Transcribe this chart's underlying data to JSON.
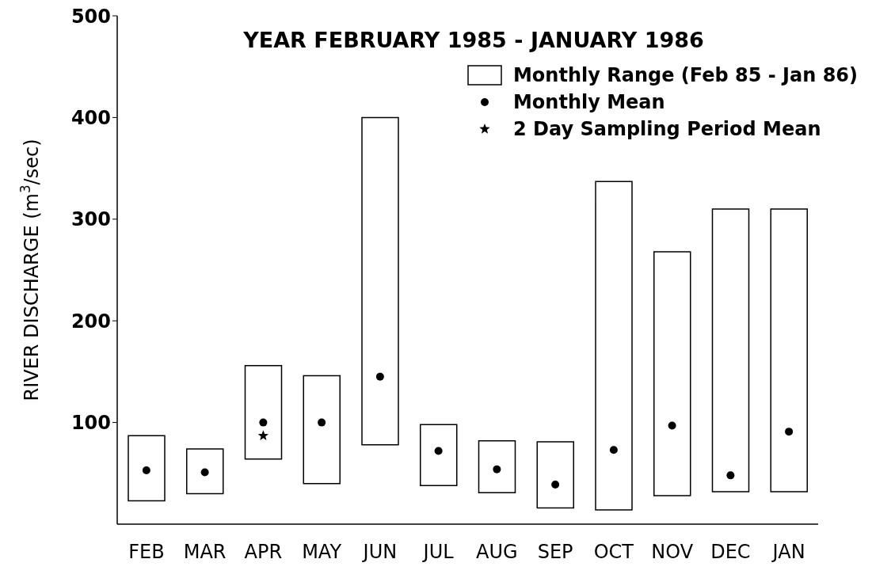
{
  "chart_data": {
    "type": "bar",
    "title": "YEAR FEBRUARY 1985 - JANUARY 1986",
    "ylabel": "RIVER DISCHARGE (m$^{3}$/sec)",
    "categories": [
      "FEB",
      "MAR",
      "APR",
      "MAY",
      "JUN",
      "JUL",
      "AUG",
      "SEP",
      "OCT",
      "NOV",
      "DEC",
      "JAN"
    ],
    "series": [
      {
        "name": "Monthly Range (Feb 85 - Jan 86)",
        "color": "#ffffff",
        "base": [
          23,
          30,
          64,
          40,
          78,
          38,
          31,
          16,
          14,
          28,
          32,
          32
        ],
        "values": [
          64,
          44,
          92,
          106,
          322,
          60,
          51,
          65,
          323,
          240,
          278,
          278
        ]
      },
      {
        "name": "Monthly Mean",
        "type": "scatter",
        "color": "#000000",
        "marker": "circle",
        "x": [
          "FEB",
          "MAR",
          "APR",
          "MAY",
          "JUN",
          "JUL",
          "AUG",
          "SEP",
          "OCT",
          "NOV",
          "DEC",
          "JAN"
        ],
        "values": [
          53,
          51,
          100,
          100,
          145,
          72,
          54,
          39,
          73,
          97,
          48,
          91
        ]
      },
      {
        "name": "2 Day Sampling Period Mean",
        "type": "scatter",
        "color": "#000000",
        "marker": "star",
        "x": [
          "APR"
        ],
        "values": [
          87
        ]
      }
    ],
    "ylim": [
      0,
      500
    ],
    "yticks": [
      100,
      200,
      300,
      400,
      500
    ],
    "grid": false,
    "legend": "top right"
  }
}
